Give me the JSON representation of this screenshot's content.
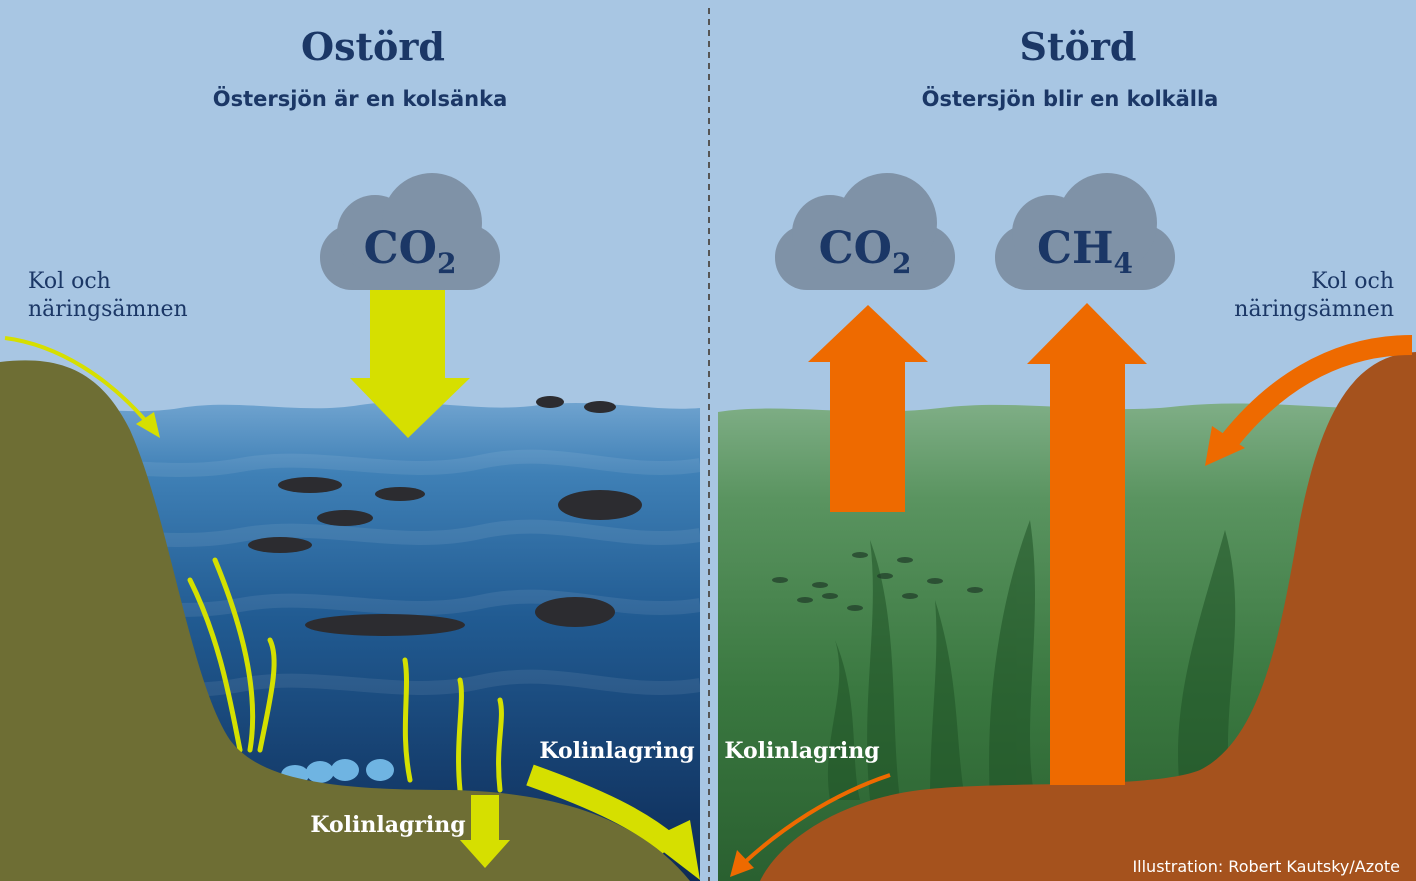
{
  "panels": [
    {
      "title": "Ostörd",
      "subtitle": "Östersjön är en kolsänka",
      "clouds": [
        {
          "formula": "CO",
          "subscript": "2"
        }
      ],
      "inflow_label": [
        "Kol och",
        "näringsämnen"
      ],
      "storage_labels": [
        "Kolinlagring",
        "Kolinlagring"
      ]
    },
    {
      "title": "Störd",
      "subtitle": "Östersjön blir en kolkälla",
      "clouds": [
        {
          "formula": "CO",
          "subscript": "2"
        },
        {
          "formula": "CH",
          "subscript": "4"
        }
      ],
      "inflow_label": [
        "Kol och",
        "näringsämnen"
      ],
      "storage_labels": [
        "Kolinlagring"
      ]
    }
  ],
  "credit": "Illustration: Robert Kautsky/Azote"
}
